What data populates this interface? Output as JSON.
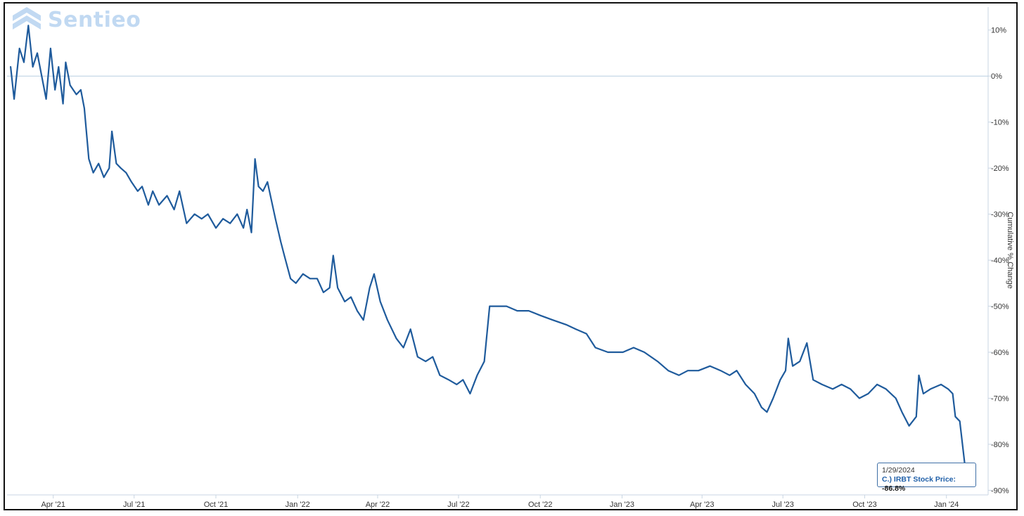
{
  "brand": {
    "name": "Sentieo",
    "icon": "sentieo-logo-icon"
  },
  "colors": {
    "line": "#1f5b9c",
    "grid": "#b8cde0",
    "text": "#333333"
  },
  "tooltip": {
    "date": "1/29/2024",
    "series_label": "C.) IRBT Stock Price:",
    "value": "-86.8%"
  },
  "chart_data": {
    "type": "line",
    "title": "",
    "xlabel": "",
    "ylabel": "Cumulative % Change",
    "ylim": [
      -91,
      15
    ],
    "y_ticks": [
      10,
      0,
      -10,
      -20,
      -30,
      -40,
      -50,
      -60,
      -70,
      -80,
      -90
    ],
    "y_tick_labels": [
      "10%",
      "0%",
      "-10%",
      "-20%",
      "-30%",
      "-40%",
      "-50%",
      "-60%",
      "-70%",
      "-80%",
      "-90%"
    ],
    "x_range": [
      "2021-02-08",
      "2024-02-09"
    ],
    "x_ticks": [
      "2021-04-01",
      "2021-07-01",
      "2021-10-01",
      "2022-01-01",
      "2022-04-01",
      "2022-07-01",
      "2022-10-01",
      "2023-01-01",
      "2023-04-01",
      "2023-07-01",
      "2023-10-01",
      "2024-01-01"
    ],
    "x_tick_labels": [
      "Apr '21",
      "Jul '21",
      "Oct '21",
      "Jan '22",
      "Apr '22",
      "Jul '22",
      "Oct '22",
      "Jan '23",
      "Apr '23",
      "Jul '23",
      "Oct '23",
      "Jan '24"
    ],
    "grid": "zero-line only",
    "legend": "none",
    "series": [
      {
        "name": "C.) IRBT Stock Price",
        "points": [
          [
            "2021-02-12",
            2
          ],
          [
            "2021-02-16",
            -5
          ],
          [
            "2021-02-22",
            6
          ],
          [
            "2021-02-27",
            3
          ],
          [
            "2021-03-04",
            11
          ],
          [
            "2021-03-09",
            2
          ],
          [
            "2021-03-14",
            5
          ],
          [
            "2021-03-19",
            0
          ],
          [
            "2021-03-24",
            -5
          ],
          [
            "2021-03-29",
            6
          ],
          [
            "2021-04-03",
            -3
          ],
          [
            "2021-04-07",
            2
          ],
          [
            "2021-04-12",
            -6
          ],
          [
            "2021-04-15",
            3
          ],
          [
            "2021-04-20",
            -2
          ],
          [
            "2021-04-27",
            -4
          ],
          [
            "2021-05-02",
            -3
          ],
          [
            "2021-05-06",
            -7
          ],
          [
            "2021-05-11",
            -18
          ],
          [
            "2021-05-16",
            -21
          ],
          [
            "2021-05-22",
            -19
          ],
          [
            "2021-05-28",
            -22
          ],
          [
            "2021-06-03",
            -20
          ],
          [
            "2021-06-06",
            -12
          ],
          [
            "2021-06-11",
            -19
          ],
          [
            "2021-06-16",
            -20
          ],
          [
            "2021-06-22",
            -21
          ],
          [
            "2021-06-28",
            -23
          ],
          [
            "2021-07-05",
            -25
          ],
          [
            "2021-07-10",
            -24
          ],
          [
            "2021-07-17",
            -28
          ],
          [
            "2021-07-22",
            -25
          ],
          [
            "2021-07-29",
            -28
          ],
          [
            "2021-08-07",
            -26
          ],
          [
            "2021-08-15",
            -29
          ],
          [
            "2021-08-21",
            -25
          ],
          [
            "2021-08-29",
            -32
          ],
          [
            "2021-09-07",
            -30
          ],
          [
            "2021-09-15",
            -31
          ],
          [
            "2021-09-22",
            -30
          ],
          [
            "2021-10-01",
            -33
          ],
          [
            "2021-10-09",
            -31
          ],
          [
            "2021-10-17",
            -32
          ],
          [
            "2021-10-25",
            -30
          ],
          [
            "2021-11-01",
            -33
          ],
          [
            "2021-11-05",
            -29
          ],
          [
            "2021-11-10",
            -34
          ],
          [
            "2021-11-14",
            -18
          ],
          [
            "2021-11-18",
            -24
          ],
          [
            "2021-11-23",
            -25
          ],
          [
            "2021-11-28",
            -23
          ],
          [
            "2021-12-07",
            -31
          ],
          [
            "2021-12-13",
            -36
          ],
          [
            "2021-12-17",
            -39
          ],
          [
            "2021-12-24",
            -44
          ],
          [
            "2021-12-30",
            -45
          ],
          [
            "2022-01-07",
            -43
          ],
          [
            "2022-01-15",
            -44
          ],
          [
            "2022-01-23",
            -44
          ],
          [
            "2022-01-30",
            -47
          ],
          [
            "2022-02-06",
            -46
          ],
          [
            "2022-02-10",
            -39
          ],
          [
            "2022-02-15",
            -46
          ],
          [
            "2022-02-23",
            -49
          ],
          [
            "2022-03-02",
            -48
          ],
          [
            "2022-03-09",
            -51
          ],
          [
            "2022-03-16",
            -53
          ],
          [
            "2022-03-23",
            -46
          ],
          [
            "2022-03-28",
            -43
          ],
          [
            "2022-04-04",
            -49
          ],
          [
            "2022-04-12",
            -53
          ],
          [
            "2022-04-22",
            -57
          ],
          [
            "2022-04-30",
            -59
          ],
          [
            "2022-05-08",
            -55
          ],
          [
            "2022-05-16",
            -61
          ],
          [
            "2022-05-25",
            -62
          ],
          [
            "2022-06-02",
            -61
          ],
          [
            "2022-06-10",
            -65
          ],
          [
            "2022-06-20",
            -66
          ],
          [
            "2022-06-29",
            -67
          ],
          [
            "2022-07-06",
            -66
          ],
          [
            "2022-07-14",
            -69
          ],
          [
            "2022-07-22",
            -65
          ],
          [
            "2022-07-30",
            -62
          ],
          [
            "2022-08-05",
            -50
          ],
          [
            "2022-08-14",
            -50
          ],
          [
            "2022-08-24",
            -50
          ],
          [
            "2022-09-05",
            -51
          ],
          [
            "2022-09-18",
            -51
          ],
          [
            "2022-10-01",
            -52
          ],
          [
            "2022-10-15",
            -53
          ],
          [
            "2022-10-30",
            -54
          ],
          [
            "2022-11-10",
            -55
          ],
          [
            "2022-11-22",
            -56
          ],
          [
            "2022-12-02",
            -59
          ],
          [
            "2022-12-16",
            -60
          ],
          [
            "2023-01-02",
            -60
          ],
          [
            "2023-01-14",
            -59
          ],
          [
            "2023-01-26",
            -60
          ],
          [
            "2023-02-10",
            -62
          ],
          [
            "2023-02-22",
            -64
          ],
          [
            "2023-03-06",
            -65
          ],
          [
            "2023-03-16",
            -64
          ],
          [
            "2023-03-28",
            -64
          ],
          [
            "2023-04-10",
            -63
          ],
          [
            "2023-04-22",
            -64
          ],
          [
            "2023-05-02",
            -65
          ],
          [
            "2023-05-10",
            -64
          ],
          [
            "2023-05-20",
            -67
          ],
          [
            "2023-05-30",
            -69
          ],
          [
            "2023-06-07",
            -72
          ],
          [
            "2023-06-13",
            -73
          ],
          [
            "2023-06-20",
            -70
          ],
          [
            "2023-06-28",
            -66
          ],
          [
            "2023-07-04",
            -64
          ],
          [
            "2023-07-07",
            -57
          ],
          [
            "2023-07-12",
            -63
          ],
          [
            "2023-07-20",
            -62
          ],
          [
            "2023-07-28",
            -58
          ],
          [
            "2023-08-04",
            -66
          ],
          [
            "2023-08-14",
            -67
          ],
          [
            "2023-08-26",
            -68
          ],
          [
            "2023-09-05",
            -67
          ],
          [
            "2023-09-15",
            -68
          ],
          [
            "2023-09-25",
            -70
          ],
          [
            "2023-10-05",
            -69
          ],
          [
            "2023-10-15",
            -67
          ],
          [
            "2023-10-25",
            -68
          ],
          [
            "2023-11-05",
            -70
          ],
          [
            "2023-11-12",
            -73
          ],
          [
            "2023-11-20",
            -76
          ],
          [
            "2023-11-28",
            -74
          ],
          [
            "2023-12-01",
            -65
          ],
          [
            "2023-12-06",
            -69
          ],
          [
            "2023-12-14",
            -68
          ],
          [
            "2023-12-26",
            -67
          ],
          [
            "2024-01-03",
            -68
          ],
          [
            "2024-01-08",
            -69
          ],
          [
            "2024-01-11",
            -74
          ],
          [
            "2024-01-16",
            -75
          ],
          [
            "2024-01-22",
            -85
          ],
          [
            "2024-01-26",
            -86
          ],
          [
            "2024-01-29",
            -86.8
          ]
        ]
      }
    ]
  }
}
